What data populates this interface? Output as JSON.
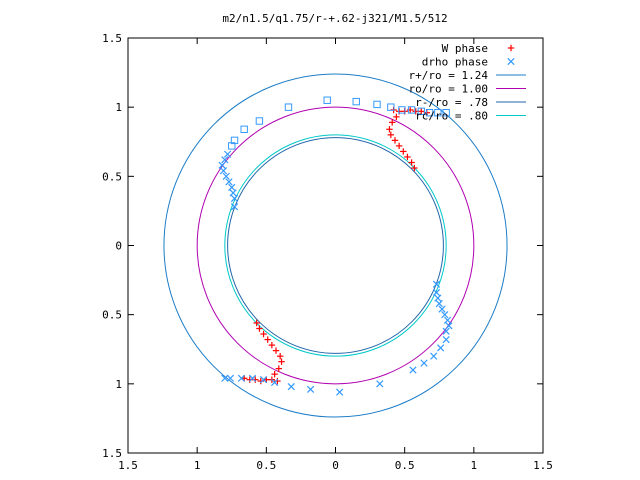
{
  "chart_data": {
    "type": "scatter",
    "title": "m2/n1.5/q1.75/r-+.62-j321/M1.5/512",
    "xlabel": "",
    "ylabel": "",
    "xlim": [
      -1.5,
      1.5
    ],
    "ylim": [
      -1.5,
      1.5
    ],
    "x_ticks": [
      {
        "value": -1.5,
        "label": "1.5"
      },
      {
        "value": -1,
        "label": "1"
      },
      {
        "value": -0.5,
        "label": "0.5"
      },
      {
        "value": 0,
        "label": "0"
      },
      {
        "value": 0.5,
        "label": "0.5"
      },
      {
        "value": 1,
        "label": "1"
      },
      {
        "value": 1.5,
        "label": "1.5"
      }
    ],
    "y_ticks": [
      {
        "value": -1.5,
        "label": "1.5"
      },
      {
        "value": -1,
        "label": "1"
      },
      {
        "value": -0.5,
        "label": "0.5"
      },
      {
        "value": 0,
        "label": "0"
      },
      {
        "value": 0.5,
        "label": "0.5"
      },
      {
        "value": 1,
        "label": "1"
      },
      {
        "value": 1.5,
        "label": "1.5"
      }
    ],
    "grid": false,
    "legend_position": "top-right",
    "series": [
      {
        "name": "W phase",
        "kind": "points",
        "marker": "plus",
        "color": "#ff0000",
        "points": [
          [
            0.42,
            0.98
          ],
          [
            0.46,
            0.97
          ],
          [
            0.5,
            0.97
          ],
          [
            0.54,
            0.98
          ],
          [
            0.58,
            0.97
          ],
          [
            0.62,
            0.97
          ],
          [
            0.66,
            0.96
          ],
          [
            0.44,
            0.93
          ],
          [
            0.41,
            0.89
          ],
          [
            0.39,
            0.84
          ],
          [
            0.4,
            0.8
          ],
          [
            0.43,
            0.76
          ],
          [
            0.46,
            0.72
          ],
          [
            0.49,
            0.68
          ],
          [
            0.52,
            0.64
          ],
          [
            0.55,
            0.6
          ],
          [
            0.57,
            0.56
          ],
          [
            -0.42,
            -0.98
          ],
          [
            -0.46,
            -0.97
          ],
          [
            -0.5,
            -0.97
          ],
          [
            -0.54,
            -0.98
          ],
          [
            -0.58,
            -0.97
          ],
          [
            -0.62,
            -0.97
          ],
          [
            -0.66,
            -0.96
          ],
          [
            -0.44,
            -0.93
          ],
          [
            -0.41,
            -0.89
          ],
          [
            -0.39,
            -0.84
          ],
          [
            -0.4,
            -0.8
          ],
          [
            -0.43,
            -0.76
          ],
          [
            -0.46,
            -0.72
          ],
          [
            -0.49,
            -0.68
          ],
          [
            -0.52,
            -0.64
          ],
          [
            -0.55,
            -0.6
          ],
          [
            -0.57,
            -0.56
          ]
        ]
      },
      {
        "name": "drho phase",
        "kind": "points",
        "marker": "cross",
        "color": "#3399ff",
        "points": [
          [
            -0.8,
            0.62
          ],
          [
            -0.82,
            0.58
          ],
          [
            -0.81,
            0.54
          ],
          [
            -0.79,
            0.5
          ],
          [
            -0.77,
            0.46
          ],
          [
            -0.75,
            0.42
          ],
          [
            -0.74,
            0.38
          ],
          [
            -0.73,
            0.34
          ],
          [
            -0.73,
            0.28
          ],
          [
            -0.78,
            0.66
          ],
          [
            0.8,
            -0.62
          ],
          [
            0.82,
            -0.58
          ],
          [
            0.81,
            -0.54
          ],
          [
            0.79,
            -0.5
          ],
          [
            0.77,
            -0.46
          ],
          [
            0.75,
            -0.42
          ],
          [
            0.74,
            -0.38
          ],
          [
            0.73,
            -0.34
          ],
          [
            0.73,
            -0.28
          ],
          [
            0.8,
            -0.68
          ],
          [
            0.76,
            -0.74
          ],
          [
            0.71,
            -0.8
          ],
          [
            0.64,
            -0.85
          ],
          [
            0.56,
            -0.9
          ],
          [
            0.32,
            -1.0
          ],
          [
            0.03,
            -1.06
          ],
          [
            -0.18,
            -1.04
          ],
          [
            -0.32,
            -1.02
          ],
          [
            -0.44,
            -0.99
          ],
          [
            -0.52,
            -0.97
          ],
          [
            -0.6,
            -0.96
          ],
          [
            -0.68,
            -0.96
          ],
          [
            -0.76,
            -0.96
          ],
          [
            -0.8,
            -0.96
          ]
        ]
      },
      {
        "name": "drho phase (open squares)",
        "kind": "points",
        "marker": "square",
        "color": "#3399ff",
        "points": [
          [
            -0.73,
            0.76
          ],
          [
            -0.75,
            0.72
          ],
          [
            -0.66,
            0.84
          ],
          [
            -0.55,
            0.9
          ],
          [
            -0.34,
            1.0
          ],
          [
            -0.06,
            1.05
          ],
          [
            0.15,
            1.04
          ],
          [
            0.3,
            1.02
          ],
          [
            0.4,
            1.0
          ],
          [
            0.48,
            0.98
          ],
          [
            0.55,
            0.98
          ],
          [
            0.62,
            0.97
          ],
          [
            0.68,
            0.96
          ],
          [
            0.74,
            0.96
          ],
          [
            0.8,
            0.96
          ]
        ]
      },
      {
        "name": "r+/ro = 1.24",
        "kind": "circle",
        "radius": 1.24,
        "color": "#1d7dc7"
      },
      {
        "name": "ro/ro = 1.00",
        "kind": "circle",
        "radius": 1.0,
        "color": "#b000b0"
      },
      {
        "name": "r-/ro = .78",
        "kind": "circle",
        "radius": 0.78,
        "color": "#2266aa"
      },
      {
        "name": "rc/ro = .80",
        "kind": "circle",
        "radius": 0.8,
        "color": "#00c8c8"
      }
    ]
  }
}
